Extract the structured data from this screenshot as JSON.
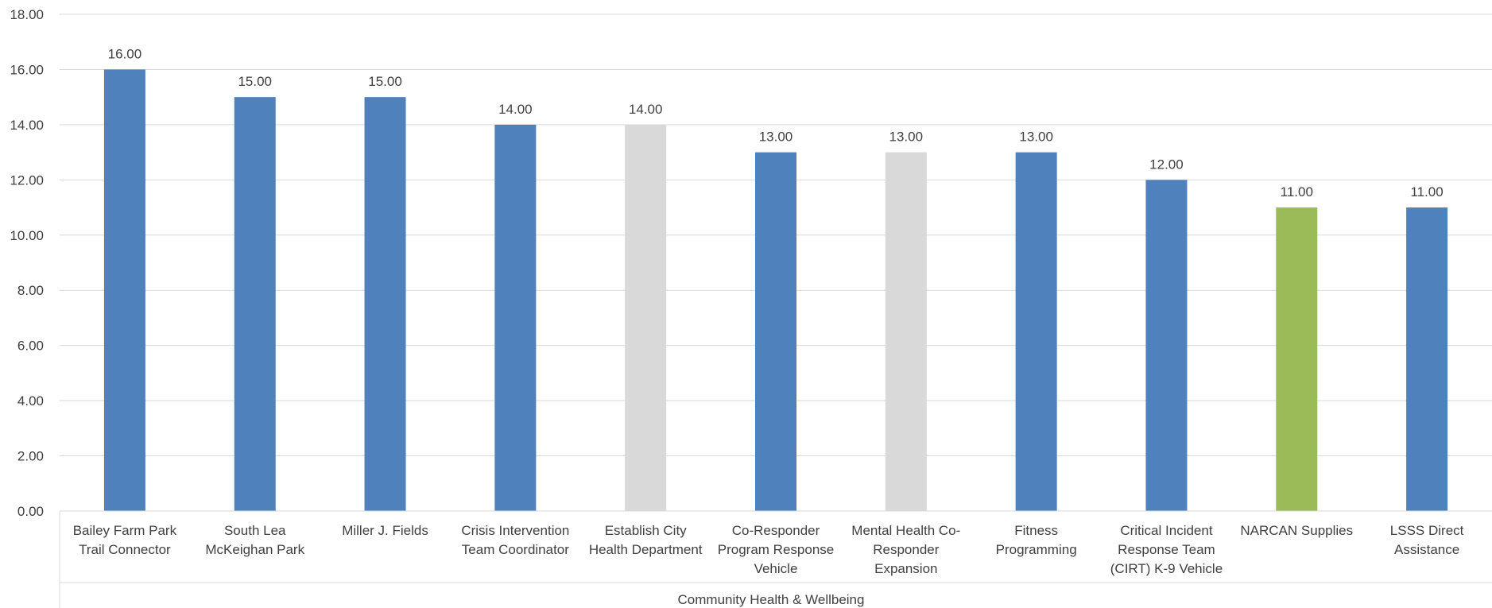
{
  "chart_data": {
    "type": "bar",
    "title": "",
    "xlabel": "",
    "ylabel": "",
    "ylim": [
      0,
      18
    ],
    "y_ticks": [
      "0.00",
      "2.00",
      "4.00",
      "6.00",
      "8.00",
      "10.00",
      "12.00",
      "14.00",
      "16.00",
      "18.00"
    ],
    "grid": true,
    "legend": "none",
    "group_label": "Community Health & Wellbeing",
    "categories": [
      [
        "Bailey Farm Park",
        "Trail Connector"
      ],
      [
        "South Lea",
        "McKeighan Park"
      ],
      [
        "Miller J. Fields"
      ],
      [
        "Crisis Intervention",
        "Team Coordinator"
      ],
      [
        "Establish City",
        "Health Department"
      ],
      [
        "Co-Responder",
        "Program Response",
        "Vehicle"
      ],
      [
        "Mental Health Co-",
        "Responder",
        "Expansion"
      ],
      [
        "Fitness",
        "Programming"
      ],
      [
        "Critical Incident",
        "Response Team",
        "(CIRT) K-9 Vehicle"
      ],
      [
        "NARCAN Supplies"
      ],
      [
        "LSSS Direct",
        "Assistance"
      ]
    ],
    "values": [
      16,
      15,
      15,
      14,
      14,
      13,
      13,
      13,
      12,
      11,
      11
    ],
    "value_labels": [
      "16.00",
      "15.00",
      "15.00",
      "14.00",
      "14.00",
      "13.00",
      "13.00",
      "13.00",
      "12.00",
      "11.00",
      "11.00"
    ],
    "bar_colors": [
      "#4f81bd",
      "#4f81bd",
      "#4f81bd",
      "#4f81bd",
      "#d9d9d9",
      "#4f81bd",
      "#d9d9d9",
      "#4f81bd",
      "#4f81bd",
      "#9bbb59",
      "#4f81bd"
    ],
    "gridline_color": "#d9d9d9",
    "axis_color": "#d9d9d9"
  }
}
